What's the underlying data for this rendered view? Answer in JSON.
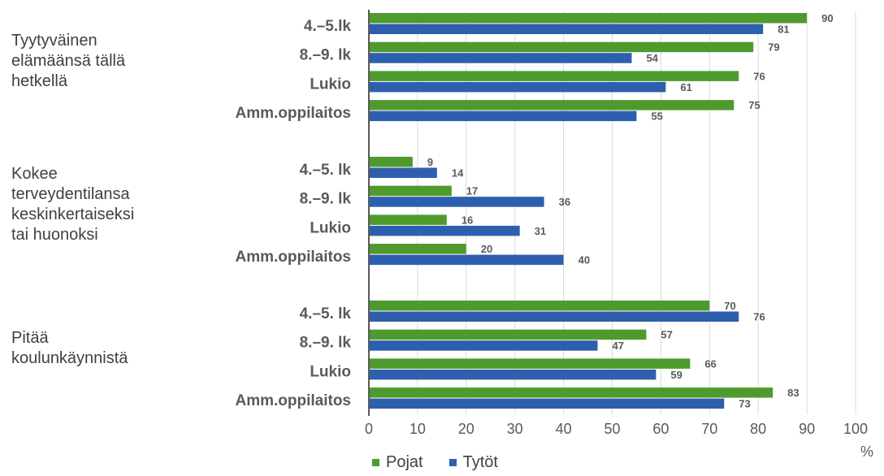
{
  "chart_data": {
    "type": "bar",
    "orientation": "horizontal",
    "groups": [
      {
        "label": "Tyytyväinen\nelämäänsä tällä\nhetkellä",
        "categories": [
          "4.–5.lk",
          "8.–9. lk",
          "Lukio",
          "Amm.oppilaitos"
        ],
        "series": [
          {
            "name": "Pojat",
            "values": [
              90,
              79,
              76,
              75
            ]
          },
          {
            "name": "Tytöt",
            "values": [
              81,
              54,
              61,
              55
            ]
          }
        ]
      },
      {
        "label": "Kokee\nterveydentilansa\nkeskinkertaiseksi\ntai huonoksi",
        "categories": [
          "4.–5. lk",
          "8.–9. lk",
          "Lukio",
          "Amm.oppilaitos"
        ],
        "series": [
          {
            "name": "Pojat",
            "values": [
              9,
              17,
              16,
              20
            ]
          },
          {
            "name": "Tytöt",
            "values": [
              14,
              36,
              31,
              40
            ]
          }
        ]
      },
      {
        "label": "Pitää\nkoulunkäynnistä",
        "categories": [
          "4.–5. lk",
          "8.–9. lk",
          "Lukio",
          "Amm.oppilaitos"
        ],
        "series": [
          {
            "name": "Pojat",
            "values": [
              70,
              57,
              66,
              83
            ]
          },
          {
            "name": "Tytöt",
            "values": [
              76,
              47,
              59,
              73
            ]
          }
        ]
      }
    ],
    "xlim": [
      0,
      100
    ],
    "xticks": [
      0,
      10,
      20,
      30,
      40,
      50,
      60,
      70,
      80,
      90,
      100
    ],
    "xlabel": "%",
    "grid": "vertical",
    "legend_position": "bottom",
    "legend": [
      {
        "name": "Pojat",
        "color": "#4f9a2e"
      },
      {
        "name": "Tytöt",
        "color": "#2d5fae"
      }
    ]
  }
}
